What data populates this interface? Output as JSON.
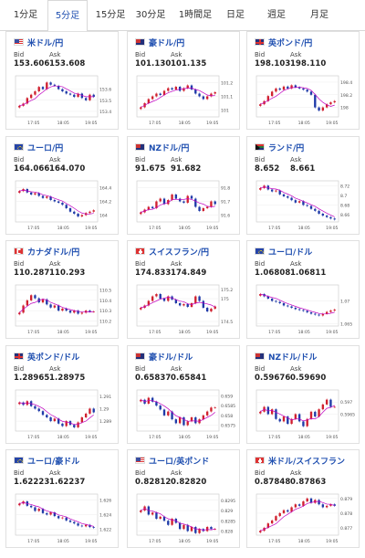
{
  "tabs": [
    {
      "label": "1分足",
      "active": false
    },
    {
      "label": "5分足",
      "active": true
    },
    {
      "label": "15分足",
      "active": false
    },
    {
      "label": "30分足",
      "active": false
    },
    {
      "label": "1時間足",
      "active": false
    },
    {
      "label": "日足",
      "active": false
    },
    {
      "label": "週足",
      "active": false
    },
    {
      "label": "月足",
      "active": false
    }
  ],
  "labels": {
    "bid": "Bid",
    "ask": "Ask"
  },
  "colors": {
    "up": "#d0212f",
    "down": "#1f3aa8",
    "ma": "#c000c0",
    "link": "#1f4fb0"
  },
  "cards": [
    {
      "pair": "米ドル/円",
      "flag": "us",
      "bid": "153.606",
      "ask": "153.608",
      "chart_data": {
        "type": "line",
        "x_ticks": [
          "17:05",
          "18:05",
          "19:05"
        ],
        "y_ticks": [
          "153.4",
          "153.5",
          "153.6"
        ],
        "ylim": [
          153.35,
          153.72
        ],
        "values": [
          153.45,
          153.47,
          153.52,
          153.55,
          153.58,
          153.62,
          153.6,
          153.66,
          153.64,
          153.63,
          153.6,
          153.58,
          153.56,
          153.55,
          153.53,
          153.56,
          153.52,
          153.5,
          153.55,
          153.53
        ]
      }
    },
    {
      "pair": "豪ドル/円",
      "flag": "au",
      "bid": "101.130",
      "ask": "101.135",
      "chart_data": {
        "type": "line",
        "x_ticks": [
          "17:05",
          "18:05",
          "19:05"
        ],
        "y_ticks": [
          "101",
          "101.1",
          "101.2"
        ],
        "ylim": [
          100.95,
          101.25
        ],
        "values": [
          101.02,
          101.05,
          101.08,
          101.1,
          101.12,
          101.11,
          101.14,
          101.16,
          101.15,
          101.17,
          101.14,
          101.16,
          101.18,
          101.15,
          101.12,
          101.1,
          101.08,
          101.1,
          101.12,
          101.13
        ]
      }
    },
    {
      "pair": "英ポンド/円",
      "flag": "gb",
      "bid": "198.103",
      "ask": "198.110",
      "chart_data": {
        "type": "line",
        "x_ticks": [
          "17:05",
          "18:05",
          "19:05"
        ],
        "y_ticks": [
          "198",
          "198.2",
          "198.4"
        ],
        "ylim": [
          197.85,
          198.5
        ],
        "values": [
          198.05,
          198.1,
          198.18,
          198.25,
          198.3,
          198.28,
          198.33,
          198.3,
          198.35,
          198.32,
          198.3,
          198.28,
          198.25,
          198.2,
          198.0,
          197.95,
          198.0,
          198.05,
          198.08,
          198.1
        ]
      }
    },
    {
      "pair": "ユーロ/円",
      "flag": "eu",
      "bid": "164.066",
      "ask": "164.070",
      "chart_data": {
        "type": "line",
        "x_ticks": [
          "17:05",
          "18:05",
          "19:05"
        ],
        "y_ticks": [
          "164",
          "164.2",
          "164.4"
        ],
        "ylim": [
          163.9,
          164.5
        ],
        "values": [
          164.35,
          164.38,
          164.33,
          164.3,
          164.32,
          164.28,
          164.25,
          164.27,
          164.22,
          164.2,
          164.18,
          164.15,
          164.1,
          164.05,
          164.02,
          163.98,
          164.0,
          164.03,
          164.05,
          164.07
        ]
      }
    },
    {
      "pair": "NZドル/円",
      "flag": "nz",
      "bid": "91.675",
      "ask": "91.682",
      "chart_data": {
        "type": "line",
        "x_ticks": [
          "17:05",
          "18:05",
          "19:05"
        ],
        "y_ticks": [
          "91.6",
          "91.7",
          "91.8"
        ],
        "ylim": [
          91.55,
          91.85
        ],
        "values": [
          91.62,
          91.64,
          91.66,
          91.65,
          91.7,
          91.72,
          91.68,
          91.71,
          91.75,
          91.72,
          91.7,
          91.69,
          91.74,
          91.72,
          91.66,
          91.63,
          91.65,
          91.66,
          91.7,
          91.68
        ]
      }
    },
    {
      "pair": "ランド/円",
      "flag": "za",
      "bid": "8.652",
      "ask": "8.661",
      "chart_data": {
        "type": "line",
        "x_ticks": [
          "17:05",
          "18:05",
          "19:05"
        ],
        "y_ticks": [
          "8.66",
          "8.68",
          "8.7",
          "8.72"
        ],
        "ylim": [
          8.645,
          8.73
        ],
        "values": [
          8.715,
          8.72,
          8.712,
          8.708,
          8.71,
          8.702,
          8.698,
          8.695,
          8.69,
          8.685,
          8.688,
          8.68,
          8.678,
          8.672,
          8.668,
          8.662,
          8.658,
          8.655,
          8.652,
          8.65
        ]
      }
    },
    {
      "pair": "カナダドル/円",
      "flag": "ca",
      "bid": "110.287",
      "ask": "110.293",
      "chart_data": {
        "type": "line",
        "x_ticks": [
          "17:05",
          "18:05",
          "19:05"
        ],
        "y_ticks": [
          "110.2",
          "110.3",
          "110.4",
          "110.5"
        ],
        "ylim": [
          110.15,
          110.55
        ],
        "values": [
          110.28,
          110.35,
          110.4,
          110.45,
          110.42,
          110.38,
          110.41,
          110.36,
          110.33,
          110.35,
          110.3,
          110.32,
          110.3,
          110.28,
          110.3,
          110.27,
          110.28,
          110.3,
          110.29,
          110.29
        ]
      }
    },
    {
      "pair": "スイスフラン/円",
      "flag": "ch",
      "bid": "174.833",
      "ask": "174.849",
      "chart_data": {
        "type": "line",
        "x_ticks": [
          "17:05",
          "18:05",
          "19:05"
        ],
        "y_ticks": [
          "174.5",
          "175",
          "175.2"
        ],
        "ylim": [
          174.4,
          175.3
        ],
        "values": [
          174.8,
          174.85,
          174.95,
          175.05,
          175.1,
          175.0,
          174.95,
          175.05,
          174.98,
          174.9,
          174.85,
          174.88,
          174.82,
          174.9,
          175.05,
          174.95,
          174.8,
          174.72,
          174.78,
          174.83
        ]
      }
    },
    {
      "pair": "ユーロ/ドル",
      "flag": "eu",
      "bid": "1.06808",
      "ask": "1.06811",
      "chart_data": {
        "type": "line",
        "x_ticks": [
          "17:05",
          "18:05",
          "19:05"
        ],
        "y_ticks": [
          "1.065",
          "1.07"
        ],
        "ylim": [
          1.0645,
          1.0735
        ],
        "values": [
          1.0715,
          1.071,
          1.0705,
          1.07,
          1.0698,
          1.0695,
          1.069,
          1.0688,
          1.0685,
          1.0682,
          1.068,
          1.0678,
          1.0675,
          1.0672,
          1.067,
          1.0668,
          1.0672,
          1.0676,
          1.0679,
          1.0681
        ]
      }
    },
    {
      "pair": "英ポンド/ドル",
      "flag": "gb",
      "bid": "1.28965",
      "ask": "1.28975",
      "chart_data": {
        "type": "line",
        "x_ticks": [
          "17:05",
          "18:05",
          "19:05"
        ],
        "y_ticks": [
          "1.289",
          "1.29",
          "1.291"
        ],
        "ylim": [
          1.2882,
          1.2915
        ],
        "values": [
          1.2905,
          1.2903,
          1.2906,
          1.2902,
          1.29,
          1.2898,
          1.2895,
          1.2893,
          1.289,
          1.2892,
          1.2888,
          1.2886,
          1.289,
          1.2887,
          1.2885,
          1.2889,
          1.2893,
          1.2896,
          1.29,
          1.2897
        ]
      }
    },
    {
      "pair": "豪ドル/ドル",
      "flag": "au",
      "bid": "0.65837",
      "ask": "0.65841",
      "chart_data": {
        "type": "line",
        "x_ticks": [
          "17:05",
          "18:05",
          "19:05"
        ],
        "y_ticks": [
          "0.6575",
          "0.658",
          "0.6585",
          "0.659"
        ],
        "ylim": [
          0.6572,
          0.6593
        ],
        "values": [
          0.6588,
          0.6586,
          0.6589,
          0.6587,
          0.6585,
          0.6583,
          0.658,
          0.6582,
          0.6578,
          0.6576,
          0.6579,
          0.6575,
          0.6577,
          0.6579,
          0.6576,
          0.6578,
          0.658,
          0.6582,
          0.6584,
          0.6584
        ]
      }
    },
    {
      "pair": "NZドル/ドル",
      "flag": "nz",
      "bid": "0.59676",
      "ask": "0.59690",
      "chart_data": {
        "type": "line",
        "x_ticks": [
          "17:05",
          "18:05",
          "19:05"
        ],
        "y_ticks": [
          "0.5965",
          "0.597"
        ],
        "ylim": [
          0.5958,
          0.5975
        ],
        "values": [
          0.5966,
          0.5968,
          0.5965,
          0.5967,
          0.5963,
          0.5962,
          0.5964,
          0.5961,
          0.5963,
          0.5965,
          0.5962,
          0.596,
          0.5963,
          0.5966,
          0.5964,
          0.5967,
          0.5969,
          0.5971,
          0.5968,
          0.5968
        ]
      }
    },
    {
      "pair": "ユーロ/豪ドル",
      "flag": "eu",
      "bid": "1.62223",
      "ask": "1.62237",
      "chart_data": {
        "type": "line",
        "x_ticks": [
          "17:05",
          "18:05",
          "19:05"
        ],
        "y_ticks": [
          "1.622",
          "1.624",
          "1.626"
        ],
        "ylim": [
          1.6212,
          1.6268
        ],
        "values": [
          1.6255,
          1.6258,
          1.6252,
          1.625,
          1.6245,
          1.6248,
          1.6242,
          1.624,
          1.6243,
          1.6238,
          1.6235,
          1.6236,
          1.6232,
          1.623,
          1.6228,
          1.6225,
          1.6224,
          1.6226,
          1.6223,
          1.6222
        ]
      }
    },
    {
      "pair": "ユーロ/英ポンド",
      "flag": "us",
      "bid": "0.82812",
      "ask": "0.82820",
      "chart_data": {
        "type": "line",
        "x_ticks": [
          "17:05",
          "18:05",
          "19:05"
        ],
        "y_ticks": [
          "0.828",
          "0.8285",
          "0.829",
          "0.8295"
        ],
        "ylim": [
          0.8278,
          0.8298
        ],
        "values": [
          0.829,
          0.8292,
          0.8288,
          0.8289,
          0.8286,
          0.8287,
          0.8285,
          0.8283,
          0.8286,
          0.8284,
          0.8281,
          0.8283,
          0.828,
          0.8282,
          0.8279,
          0.8281,
          0.828,
          0.8282,
          0.8281,
          0.8281
        ]
      }
    },
    {
      "pair": "米ドル/スイスフラン",
      "flag": "ch",
      "bid": "0.87848",
      "ask": "0.87863",
      "chart_data": {
        "type": "line",
        "x_ticks": [
          "17:05",
          "18:05",
          "19:05"
        ],
        "y_ticks": [
          "0.877",
          "0.878",
          "0.879"
        ],
        "ylim": [
          0.8765,
          0.8793
        ],
        "values": [
          0.8768,
          0.877,
          0.8773,
          0.8775,
          0.8778,
          0.878,
          0.8782,
          0.8781,
          0.8784,
          0.8786,
          0.8785,
          0.8788,
          0.879,
          0.8787,
          0.8789,
          0.8786,
          0.8784,
          0.8785,
          0.8786,
          0.8785
        ]
      }
    }
  ]
}
